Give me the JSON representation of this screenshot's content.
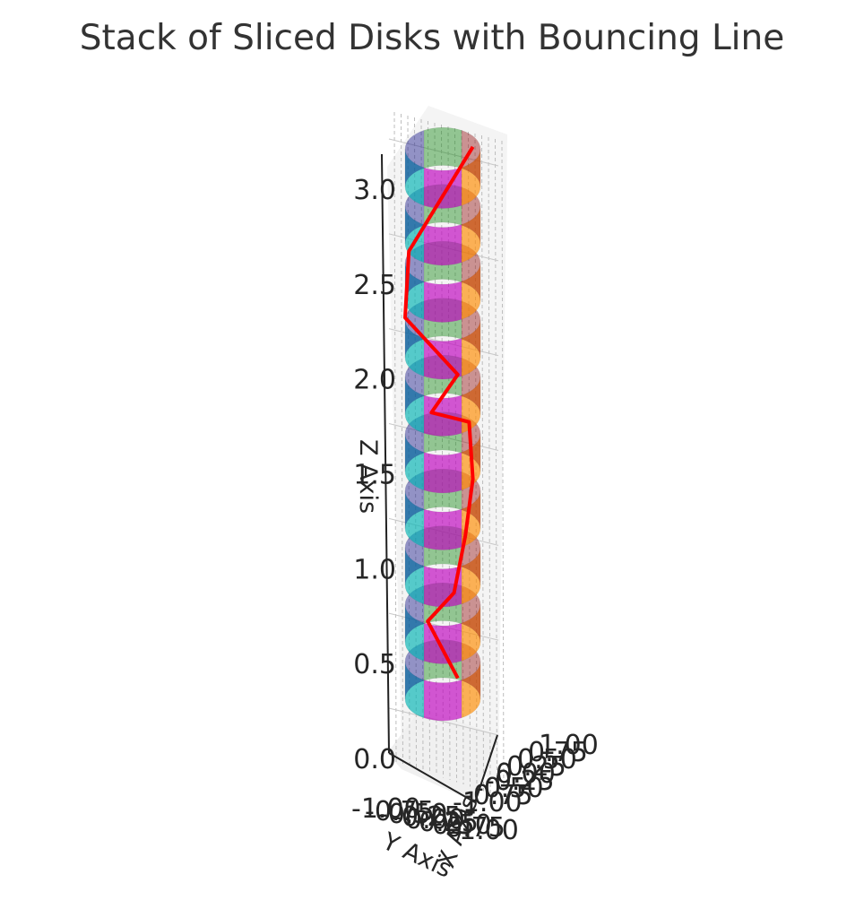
{
  "chart_data": {
    "type": "3d-line-and-surface",
    "title": "Stack of Sliced Disks with Bouncing Line",
    "xlabel": "X Axis",
    "ylabel": "Y Axis",
    "zlabel": "Z Axis",
    "xlim": [
      -1.0,
      1.0
    ],
    "ylim": [
      -1.0,
      1.0
    ],
    "zlim": [
      0.0,
      3.0
    ],
    "z_ticks": [
      "0.0",
      "0.5",
      "1.0",
      "1.5",
      "2.0",
      "2.5",
      "3.0"
    ],
    "x_ticks": [
      "-1.00",
      "-0.75",
      "-0.50",
      "-0.25",
      "0.00",
      "0.25",
      "0.50",
      "0.75",
      "1.00"
    ],
    "y_ticks": [
      "-1.00",
      "-0.75",
      "-0.50",
      "-0.25",
      "0.00",
      "0.25",
      "0.50",
      "0.75",
      "1.00"
    ],
    "grid": true,
    "disks": {
      "count": 10,
      "radius": 1.0,
      "z_levels": [
        0.0,
        0.3,
        0.6,
        0.9,
        1.2,
        1.5,
        1.8,
        2.1,
        2.4,
        2.7
      ],
      "height": 0.2,
      "slice_colors": [
        "#ff8c00",
        "#bf00bf",
        "#00b3b3",
        "#00007f",
        "#008000",
        "#8b0000"
      ]
    },
    "series": [
      {
        "color": "#ff0000",
        "x": [
          0.4,
          -0.4,
          0.3,
          0.6,
          0.8,
          0.7,
          -0.3,
          0.4,
          -1.0,
          -0.9,
          0.8
        ],
        "y": [
          0.0,
          0.0,
          0.0,
          0.0,
          0.0,
          0.0,
          0.0,
          0.0,
          0.0,
          0.0,
          0.0
        ],
        "z": [
          0.3,
          0.6,
          0.75,
          1.05,
          1.35,
          1.65,
          1.7,
          1.9,
          2.2,
          2.55,
          3.1
        ]
      }
    ]
  }
}
